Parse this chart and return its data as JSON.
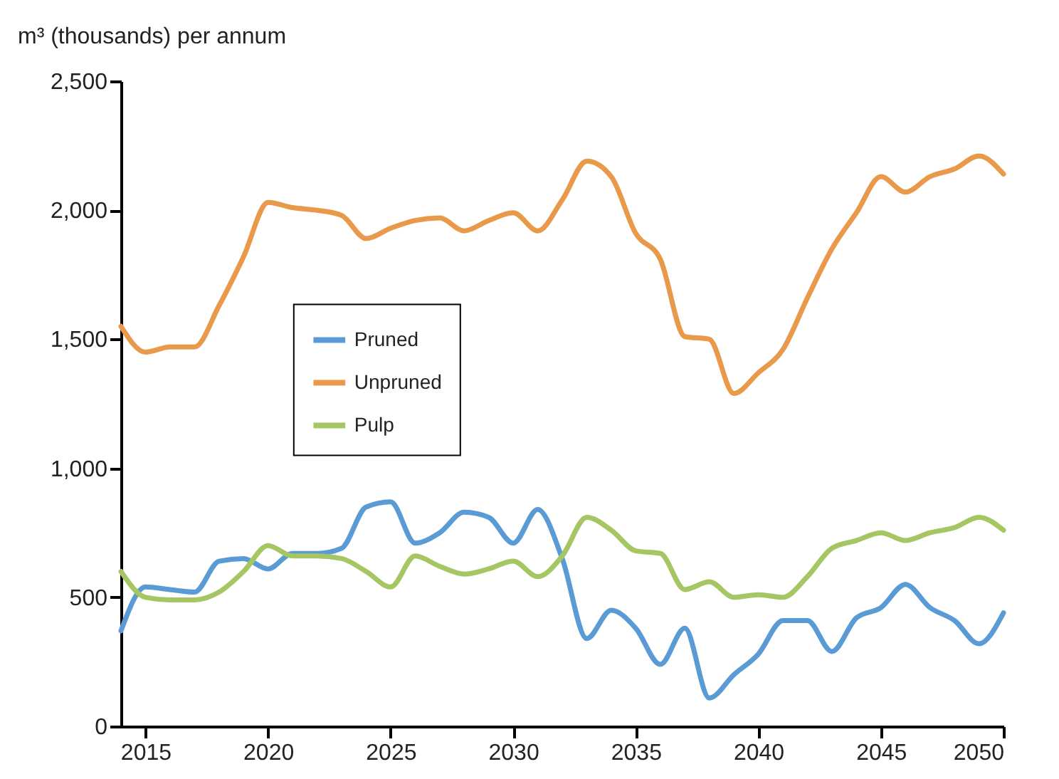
{
  "chart_data": {
    "type": "line",
    "ylabel": "m³ (thousands) per annum",
    "x": [
      2014,
      2015,
      2016,
      2017,
      2018,
      2019,
      2020,
      2021,
      2022,
      2023,
      2024,
      2025,
      2026,
      2027,
      2028,
      2029,
      2030,
      2031,
      2032,
      2033,
      2034,
      2035,
      2036,
      2037,
      2038,
      2039,
      2040,
      2041,
      2042,
      2043,
      2044,
      2045,
      2046,
      2047,
      2048,
      2049,
      2050
    ],
    "series": [
      {
        "name": "Pruned",
        "color": "#5b9bd5",
        "values": [
          370,
          540,
          530,
          520,
          640,
          650,
          610,
          670,
          670,
          690,
          850,
          870,
          710,
          750,
          830,
          810,
          710,
          840,
          650,
          340,
          450,
          380,
          240,
          380,
          110,
          200,
          280,
          410,
          410,
          290,
          420,
          460,
          550,
          460,
          410,
          320,
          440
        ]
      },
      {
        "name": "Unpruned",
        "color": "#e8994a",
        "values": [
          1550,
          1450,
          1470,
          1470,
          1630,
          1820,
          2030,
          2010,
          2000,
          1980,
          1890,
          1930,
          1960,
          1970,
          1920,
          1960,
          1990,
          1920,
          2040,
          2190,
          2130,
          1910,
          1810,
          1510,
          1500,
          1290,
          1370,
          1460,
          1660,
          1850,
          1990,
          2130,
          2070,
          2130,
          2160,
          2210,
          2140
        ]
      },
      {
        "name": "Pulp",
        "color": "#a5c663",
        "values": [
          600,
          500,
          490,
          490,
          520,
          600,
          700,
          660,
          660,
          650,
          600,
          540,
          660,
          620,
          590,
          610,
          640,
          580,
          660,
          810,
          760,
          680,
          670,
          530,
          560,
          500,
          510,
          500,
          580,
          690,
          720,
          750,
          720,
          750,
          770,
          810,
          760
        ]
      }
    ],
    "xlim": [
      2014,
      2050
    ],
    "xticks": [
      2015,
      2020,
      2025,
      2030,
      2035,
      2040,
      2045,
      2050
    ],
    "ylim": [
      0,
      2500
    ],
    "yticks": [
      0,
      500,
      {
        "value": 1000,
        "label": "1,000"
      },
      {
        "value": 1500,
        "label": "1,500"
      },
      {
        "value": 2000,
        "label": "2,000"
      },
      {
        "value": 2500,
        "label": "2,500"
      }
    ],
    "legend": "left",
    "grid": false,
    "marker": "none",
    "line_style": "solid"
  }
}
